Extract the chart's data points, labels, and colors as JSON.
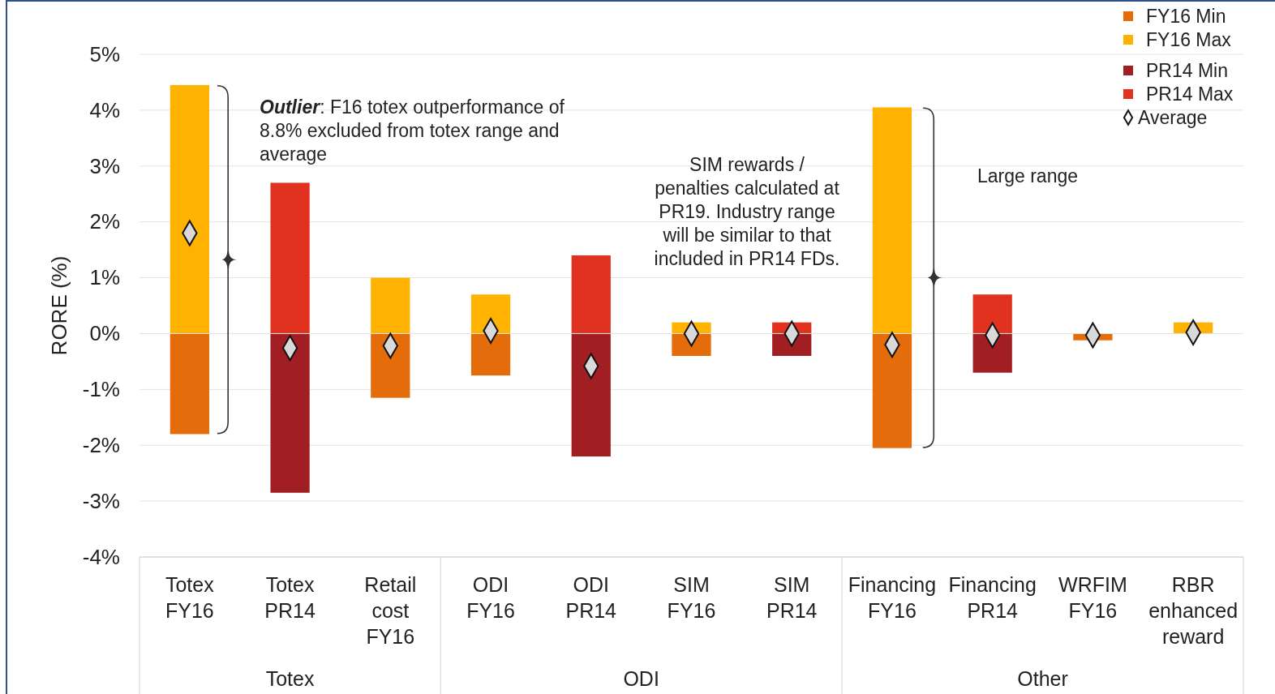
{
  "chart_data": {
    "type": "bar",
    "stacked": true,
    "ylabel": "RORE (%)",
    "categories": [
      "Totex\nFY16",
      "Totex\nPR14",
      "Retail\ncost\nFY16",
      "ODI\nFY16",
      "ODI\nPR14",
      "SIM\nFY16",
      "SIM\nPR14",
      "Financing\nFY16",
      "Financing\nPR14",
      "WRFIM\nFY16",
      "RBR\nenhanced\nreward"
    ],
    "ylim": [
      -4,
      5
    ],
    "yticks": [
      {
        "value": -4,
        "label": "-4%"
      },
      {
        "value": -3,
        "label": "-3%"
      },
      {
        "value": -2,
        "label": "-2%"
      },
      {
        "value": -1,
        "label": "-1%"
      },
      {
        "value": 0,
        "label": "0%"
      },
      {
        "value": 1,
        "label": "1%"
      },
      {
        "value": 2,
        "label": "2%"
      },
      {
        "value": 3,
        "label": "3%"
      },
      {
        "value": 4,
        "label": "4%"
      },
      {
        "value": 5,
        "label": "5%"
      }
    ],
    "grid": "y",
    "legend": "top right",
    "series": [
      {
        "name": "FY16 Min",
        "color": "#e46c0a",
        "values": [
          -1.8,
          null,
          -1.15,
          -0.75,
          null,
          -0.4,
          null,
          -2.05,
          null,
          -0.12,
          null
        ]
      },
      {
        "name": "FY16 Max",
        "color": "#ffb300",
        "values": [
          4.45,
          null,
          1.0,
          0.7,
          null,
          0.2,
          null,
          4.05,
          null,
          null,
          0.2
        ]
      },
      {
        "name": "PR14 Min",
        "color": "#a11f23",
        "values": [
          null,
          -2.85,
          null,
          null,
          -2.2,
          null,
          -0.4,
          null,
          -0.7,
          null,
          null
        ]
      },
      {
        "name": "PR14 Max",
        "color": "#e0321e",
        "values": [
          null,
          2.7,
          null,
          null,
          1.4,
          null,
          0.2,
          null,
          0.7,
          null,
          null
        ]
      },
      {
        "name": "Average",
        "type": "scatter",
        "marker": "diamond",
        "color": "#d9d9d9",
        "x": [
          "Totex\nFY16",
          "Totex\nPR14",
          "Retail\ncost\nFY16",
          "ODI\nFY16",
          "ODI\nPR14",
          "SIM\nFY16",
          "SIM\nPR14",
          "Financing\nFY16",
          "Financing\nPR14",
          "WRFIM\nFY16",
          "RBR\nenhanced\nreward"
        ],
        "values": [
          1.8,
          -0.26,
          -0.22,
          0.05,
          -0.58,
          0.0,
          0.0,
          -0.2,
          -0.03,
          -0.03,
          0.02
        ]
      }
    ],
    "annotations": [
      "Outlier: F16 totex outperformance of 8.8% excluded from totex range and average",
      "SIM rewards / penalties calculated at PR19. Industry range will be similar to that included in PR14 FDs.",
      "Large range",
      "Totex",
      "ODI",
      "Other"
    ]
  }
}
